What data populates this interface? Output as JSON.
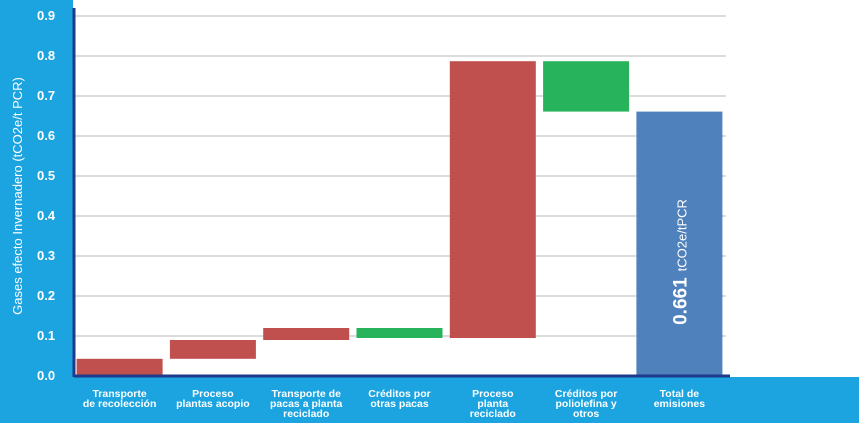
{
  "chart_data": {
    "type": "bar",
    "subtype": "waterfall",
    "ylabel": "Gases efecto Invernadero (tCO2e/t PCR)",
    "ylim": [
      0,
      0.9
    ],
    "yticks": [
      "0.0",
      "0.1",
      "0.2",
      "0.3",
      "0.4",
      "0.5",
      "0.6",
      "0.7",
      "0.8",
      "0.9"
    ],
    "grid": true,
    "bars": [
      {
        "label": [
          "Transporte",
          "de recolección"
        ],
        "base": 0.0,
        "top": 0.043,
        "kind": "increase"
      },
      {
        "label": [
          "Proceso",
          "plantas acopio"
        ],
        "base": 0.043,
        "top": 0.09,
        "kind": "increase"
      },
      {
        "label": [
          "Transporte de",
          "pacas a planta",
          "reciclado"
        ],
        "base": 0.09,
        "top": 0.12,
        "kind": "increase"
      },
      {
        "label": [
          "Créditos por",
          "otras pacas"
        ],
        "base": 0.095,
        "top": 0.12,
        "kind": "decrease"
      },
      {
        "label": [
          "Proceso",
          "planta",
          "reciclado"
        ],
        "base": 0.095,
        "top": 0.787,
        "kind": "increase"
      },
      {
        "label": [
          "Créditos por",
          "poliolefina y",
          "otros"
        ],
        "base": 0.661,
        "top": 0.787,
        "kind": "decrease"
      },
      {
        "label": [
          "Total de",
          "emisiones"
        ],
        "base": 0.0,
        "top": 0.661,
        "kind": "total"
      }
    ],
    "total_annotation": {
      "value": "0.661",
      "unit": "tCO2e/tPCR"
    },
    "colors": {
      "increase": "#c0504d",
      "decrease": "#27b35c",
      "total": "#4f81bd",
      "panel": "#1ba4e0",
      "axis": "#1f3a8a",
      "grid": "#b9b9b9",
      "text": "#ffffff"
    }
  }
}
